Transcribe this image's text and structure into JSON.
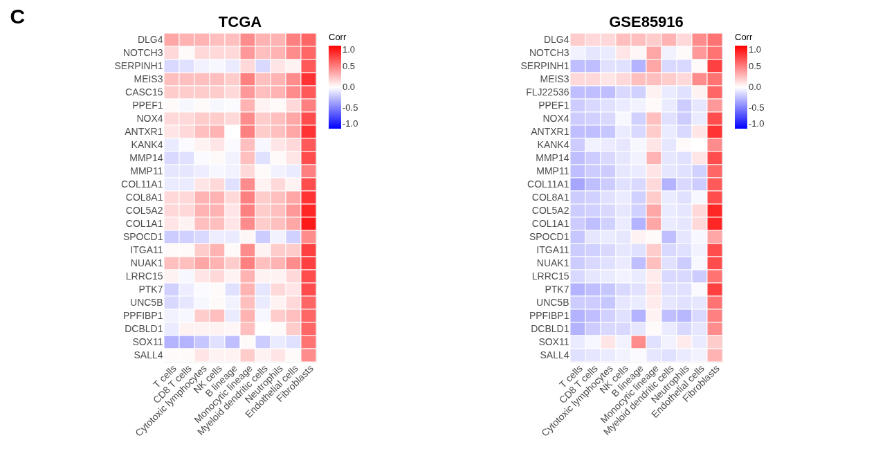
{
  "chart_data": [
    {
      "type": "heatmap",
      "title": "TCGA",
      "annotations": [
        "C"
      ],
      "clabel": "Corr",
      "clim": [
        -1,
        1
      ],
      "cticks": [
        {
          "value": -1,
          "label": "-1.0"
        },
        {
          "value": -0.5,
          "label": "-0.5"
        },
        {
          "value": 0,
          "label": "0.0"
        },
        {
          "value": 0.5,
          "label": "0.5"
        },
        {
          "value": 1,
          "label": "1.0"
        }
      ],
      "categories": [
        "T cells",
        "CD8 T cells",
        "Cytotoxic lymphocytes",
        "NK cells",
        "B lineage",
        "Monocytic lineage",
        "Myeloid dendritic cells",
        "Neutrophils",
        "Endothelial cells",
        "Fibroblasts"
      ],
      "y_categories": [
        "DLG4",
        "NOTCH3",
        "SERPINH1",
        "MEIS3",
        "CASC15",
        "PPEF1",
        "NOX4",
        "ANTXR1",
        "KANK4",
        "MMP14",
        "MMP11",
        "COL11A1",
        "COL8A1",
        "COL5A2",
        "COL1A1",
        "SPOCD1",
        "ITGA11",
        "NUAK1",
        "LRRC15",
        "PTK7",
        "UNC5B",
        "PPFIBP1",
        "DCBLD1",
        "SOX11",
        "SALL4"
      ],
      "cells": [
        [
          0.35,
          0.3,
          0.3,
          0.25,
          0.25,
          0.45,
          0.3,
          0.3,
          0.5,
          0.6
        ],
        [
          0.15,
          0.02,
          0.15,
          0.15,
          0.15,
          0.4,
          0.25,
          0.3,
          0.45,
          0.6
        ],
        [
          -0.15,
          -0.12,
          -0.05,
          -0.03,
          -0.08,
          0.15,
          -0.15,
          0.1,
          0.05,
          0.65
        ],
        [
          0.25,
          0.25,
          0.25,
          0.25,
          0.2,
          0.5,
          0.25,
          0.3,
          0.45,
          0.8
        ],
        [
          0.2,
          0.2,
          0.2,
          0.2,
          0.15,
          0.4,
          0.25,
          0.3,
          0.45,
          0.65
        ],
        [
          0.02,
          -0.03,
          0.02,
          -0.03,
          -0.02,
          0.3,
          0.05,
          0.02,
          0.15,
          0.5
        ],
        [
          0.15,
          0.15,
          0.2,
          0.2,
          0.15,
          0.45,
          0.2,
          0.25,
          0.35,
          0.7
        ],
        [
          0.1,
          0.15,
          0.25,
          0.3,
          0.0,
          0.5,
          0.2,
          0.25,
          0.35,
          0.8
        ],
        [
          -0.08,
          -0.02,
          0.05,
          0.1,
          -0.02,
          0.25,
          -0.03,
          0.1,
          0.15,
          0.65
        ],
        [
          -0.15,
          -0.12,
          -0.02,
          0.02,
          -0.05,
          0.25,
          -0.12,
          0.02,
          0.1,
          0.7
        ],
        [
          -0.1,
          -0.1,
          -0.07,
          -0.03,
          -0.05,
          0.15,
          0.02,
          -0.05,
          -0.08,
          0.5
        ],
        [
          -0.08,
          -0.08,
          0.1,
          0.15,
          -0.12,
          0.45,
          0.05,
          0.15,
          0.05,
          0.7
        ],
        [
          0.15,
          0.15,
          0.3,
          0.3,
          0.15,
          0.5,
          0.2,
          0.25,
          0.35,
          0.8
        ],
        [
          0.15,
          0.15,
          0.3,
          0.3,
          0.1,
          0.5,
          0.2,
          0.25,
          0.4,
          0.85
        ],
        [
          0.1,
          0.05,
          0.25,
          0.25,
          0.1,
          0.45,
          0.2,
          0.25,
          0.35,
          0.9
        ],
        [
          -0.2,
          -0.18,
          -0.15,
          -0.07,
          -0.08,
          0.03,
          -0.2,
          -0.05,
          -0.18,
          0.45
        ],
        [
          0.02,
          0.02,
          0.2,
          0.3,
          0.02,
          0.45,
          0.05,
          0.2,
          0.2,
          0.75
        ],
        [
          0.25,
          0.25,
          0.35,
          0.3,
          0.2,
          0.5,
          0.25,
          0.3,
          0.45,
          0.75
        ],
        [
          0.05,
          -0.03,
          0.1,
          0.15,
          0.05,
          0.3,
          0.05,
          0.05,
          0.15,
          0.7
        ],
        [
          -0.18,
          -0.07,
          -0.02,
          0.02,
          -0.12,
          0.3,
          -0.1,
          0.15,
          0.1,
          0.7
        ],
        [
          -0.15,
          -0.1,
          -0.03,
          0.02,
          -0.05,
          0.25,
          -0.08,
          0.05,
          0.15,
          0.6
        ],
        [
          -0.05,
          -0.03,
          0.2,
          0.25,
          -0.08,
          0.3,
          -0.03,
          0.2,
          0.25,
          0.6
        ],
        [
          -0.08,
          0.05,
          0.05,
          0.05,
          0.03,
          0.25,
          0.0,
          0.02,
          0.2,
          0.6
        ],
        [
          -0.3,
          -0.3,
          -0.22,
          -0.12,
          -0.25,
          0.02,
          -0.2,
          -0.08,
          -0.12,
          0.55
        ],
        [
          0.02,
          0.02,
          0.1,
          0.05,
          0.05,
          0.2,
          0.05,
          0.1,
          0.02,
          0.45
        ]
      ]
    },
    {
      "type": "heatmap",
      "title": "GSE85916",
      "clabel": "Corr",
      "clim": [
        -1,
        1
      ],
      "cticks": [
        {
          "value": -1,
          "label": "-1.0"
        },
        {
          "value": -0.5,
          "label": "-0.5"
        },
        {
          "value": 0,
          "label": "0.0"
        },
        {
          "value": 0.5,
          "label": "0.5"
        },
        {
          "value": 1,
          "label": "1.0"
        }
      ],
      "categories": [
        "T cells",
        "CD8 T cells",
        "Cytotoxic lymphocytes",
        "NK cells",
        "B lineage",
        "Monocytic lineage",
        "Myeloid dendritic cells",
        "Neutrophils",
        "Endothelial cells",
        "Fibroblasts"
      ],
      "y_categories": [
        "DLG4",
        "NOTCH3",
        "SERPINH1",
        "MEIS3",
        "FLJ22536",
        "PPEF1",
        "NOX4",
        "ANTXR1",
        "KANK4",
        "MMP14",
        "MMP11",
        "COL11A1",
        "COL8A1",
        "COL5A2",
        "COL1A1",
        "SPOCD1",
        "ITGA11",
        "NUAK1",
        "LRRC15",
        "PTK7",
        "UNC5B",
        "PPFIBP1",
        "DCBLD1",
        "SOX11",
        "SALL4"
      ],
      "cells": [
        [
          0.2,
          0.15,
          0.15,
          0.25,
          0.25,
          0.2,
          0.3,
          0.15,
          0.45,
          0.55
        ],
        [
          -0.05,
          -0.1,
          -0.08,
          0.1,
          0.03,
          0.35,
          -0.05,
          0.02,
          0.4,
          0.55
        ],
        [
          -0.25,
          -0.25,
          -0.12,
          -0.12,
          -0.3,
          0.35,
          -0.15,
          -0.15,
          0.02,
          0.75
        ],
        [
          0.15,
          0.15,
          0.1,
          0.15,
          0.25,
          0.25,
          0.2,
          0.15,
          0.45,
          0.55
        ],
        [
          -0.25,
          -0.25,
          -0.25,
          -0.15,
          -0.18,
          0.05,
          -0.08,
          -0.12,
          0.05,
          0.6
        ],
        [
          -0.2,
          -0.15,
          -0.12,
          -0.08,
          -0.05,
          0.02,
          -0.08,
          -0.2,
          -0.1,
          0.4
        ],
        [
          -0.2,
          -0.18,
          -0.15,
          -0.03,
          -0.18,
          0.25,
          -0.12,
          -0.2,
          -0.08,
          0.7
        ],
        [
          -0.25,
          -0.25,
          -0.22,
          -0.08,
          -0.15,
          0.2,
          -0.08,
          -0.15,
          0.1,
          0.8
        ],
        [
          -0.2,
          -0.05,
          -0.08,
          -0.1,
          -0.03,
          0.1,
          -0.1,
          0.02,
          0.0,
          0.45
        ],
        [
          -0.25,
          -0.2,
          -0.15,
          -0.1,
          -0.05,
          0.3,
          -0.1,
          -0.12,
          0.1,
          0.7
        ],
        [
          -0.25,
          -0.2,
          -0.2,
          -0.1,
          -0.08,
          0.1,
          -0.1,
          -0.12,
          -0.18,
          0.6
        ],
        [
          -0.35,
          -0.25,
          -0.2,
          -0.12,
          -0.15,
          0.15,
          -0.3,
          -0.15,
          -0.2,
          0.65
        ],
        [
          -0.2,
          -0.18,
          -0.12,
          -0.08,
          -0.18,
          0.2,
          -0.08,
          -0.12,
          -0.03,
          0.7
        ],
        [
          -0.2,
          -0.18,
          -0.15,
          -0.1,
          -0.18,
          0.35,
          -0.08,
          -0.1,
          0.15,
          0.85
        ],
        [
          -0.2,
          -0.25,
          -0.18,
          -0.08,
          -0.3,
          0.35,
          -0.08,
          -0.1,
          0.15,
          0.85
        ],
        [
          -0.22,
          -0.1,
          -0.08,
          -0.1,
          0.05,
          0.02,
          -0.25,
          -0.1,
          -0.03,
          0.35
        ],
        [
          -0.2,
          -0.18,
          -0.15,
          -0.1,
          -0.12,
          0.2,
          -0.15,
          -0.12,
          -0.05,
          0.7
        ],
        [
          -0.2,
          -0.15,
          -0.12,
          -0.08,
          -0.25,
          0.25,
          -0.12,
          -0.2,
          -0.03,
          0.7
        ],
        [
          -0.15,
          -0.1,
          -0.08,
          -0.05,
          -0.08,
          0.08,
          -0.15,
          -0.15,
          -0.2,
          0.55
        ],
        [
          -0.3,
          -0.25,
          -0.22,
          -0.15,
          -0.12,
          0.1,
          -0.12,
          -0.12,
          -0.02,
          0.75
        ],
        [
          -0.2,
          -0.2,
          -0.22,
          -0.1,
          -0.08,
          0.08,
          -0.1,
          -0.12,
          -0.1,
          0.55
        ],
        [
          -0.3,
          -0.25,
          -0.18,
          -0.12,
          -0.3,
          0.05,
          -0.25,
          -0.28,
          -0.15,
          0.5
        ],
        [
          -0.3,
          -0.2,
          -0.15,
          -0.15,
          -0.1,
          0.02,
          -0.08,
          -0.15,
          -0.1,
          0.45
        ],
        [
          -0.08,
          -0.03,
          0.1,
          -0.05,
          0.45,
          -0.12,
          -0.05,
          0.08,
          -0.08,
          0.2
        ],
        [
          -0.12,
          -0.1,
          -0.08,
          -0.05,
          -0.02,
          -0.1,
          -0.12,
          -0.08,
          -0.05,
          0.3
        ]
      ]
    }
  ]
}
